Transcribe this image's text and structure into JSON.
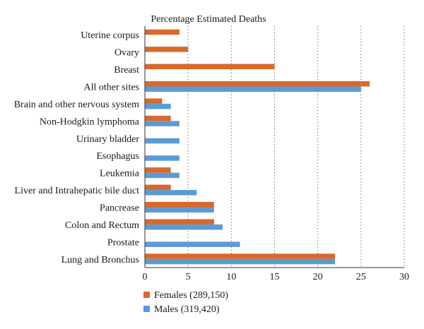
{
  "chart_data": {
    "type": "bar",
    "orientation": "horizontal",
    "title": "Percentage Estimated Deaths",
    "xlabel": "",
    "ylabel": "",
    "xlim": [
      0,
      30
    ],
    "x_ticks": [
      0,
      5,
      10,
      15,
      20,
      25,
      30
    ],
    "grid": "vertical dotted",
    "legend_position": "bottom-left",
    "categories": [
      "Uterine corpus",
      "Ovary",
      "Breast",
      "All other sites",
      "Brain and other nervous system",
      "Non-Hodgkin lymphoma",
      "Urinary bladder",
      "Esophagus",
      "Leukemia",
      "Liver and Intrahepatic bile duct",
      "Pancrease",
      "Colon and Rectum",
      "Prostate",
      "Lung and Bronchus"
    ],
    "series": [
      {
        "name": "Females (289,150)",
        "color": "#D9692B",
        "values": [
          4,
          5,
          15,
          26,
          2,
          3,
          null,
          null,
          3,
          3,
          8,
          8,
          null,
          22
        ]
      },
      {
        "name": "Males (319,420)",
        "color": "#5B9BD5",
        "values": [
          null,
          null,
          null,
          25,
          3,
          4,
          4,
          4,
          4,
          6,
          8,
          9,
          11,
          22
        ]
      }
    ]
  }
}
